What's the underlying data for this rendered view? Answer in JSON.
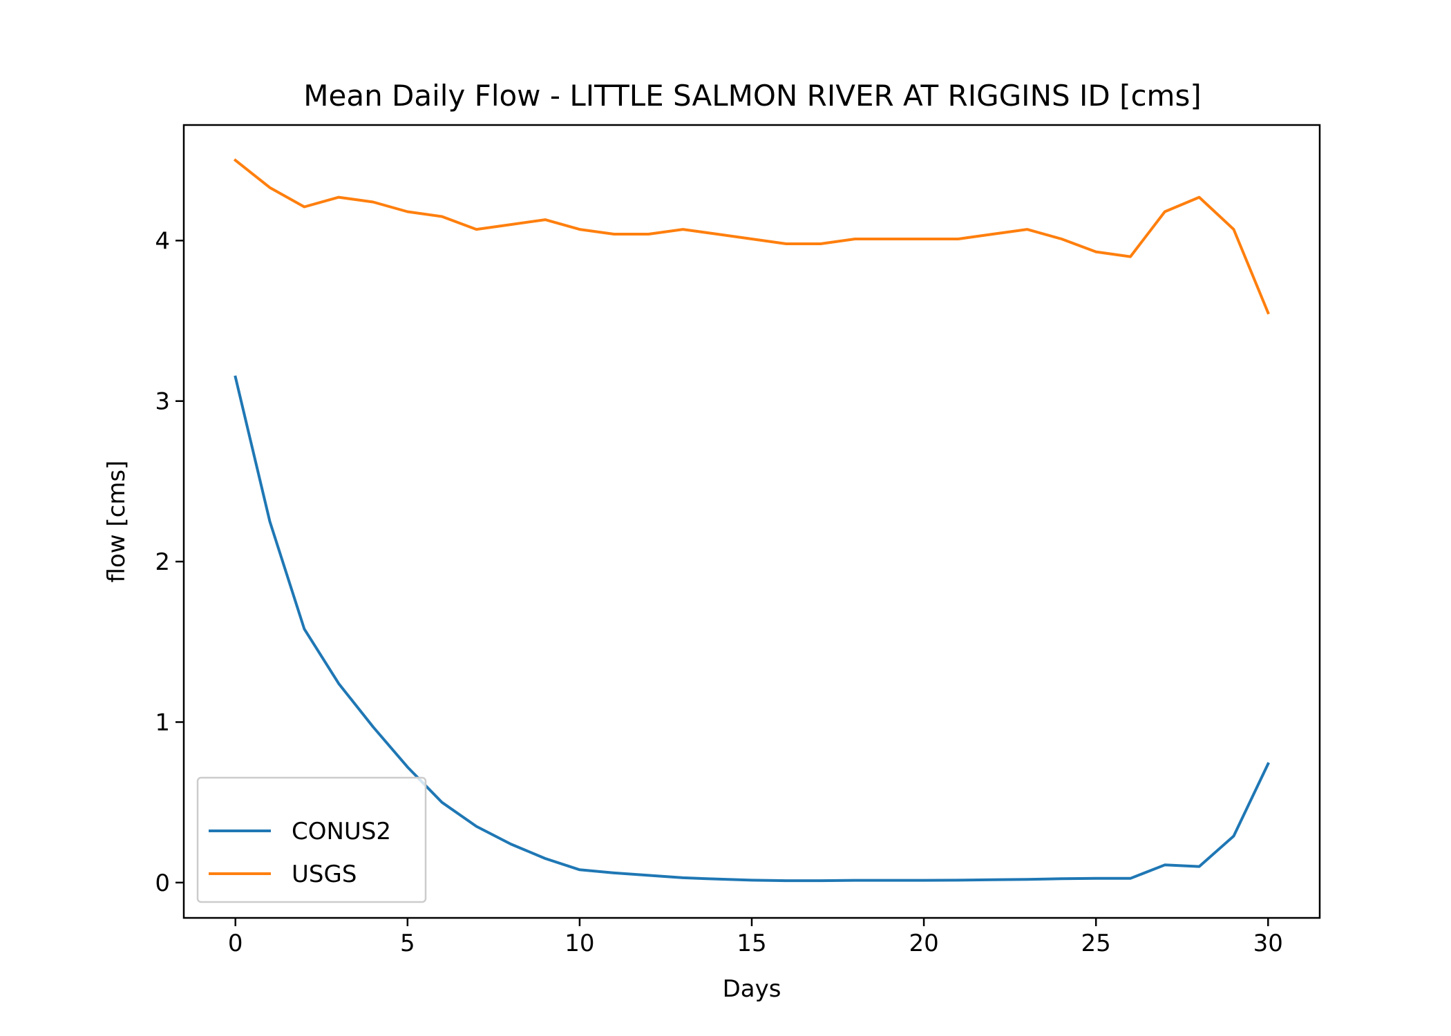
{
  "chart_data": {
    "type": "line",
    "title": "Mean Daily Flow - LITTLE SALMON RIVER AT RIGGINS ID [cms]",
    "xlabel": "Days",
    "ylabel": "flow [cms]",
    "xlim": [
      -1.5,
      31.5
    ],
    "ylim": [
      -0.22,
      4.72
    ],
    "xticks": [
      0,
      5,
      10,
      15,
      20,
      25,
      30
    ],
    "yticks": [
      0,
      1,
      2,
      3,
      4
    ],
    "grid": false,
    "legend_position": "lower-left",
    "x": [
      0,
      1,
      2,
      3,
      4,
      5,
      6,
      7,
      8,
      9,
      10,
      11,
      12,
      13,
      14,
      15,
      16,
      17,
      18,
      19,
      20,
      21,
      22,
      23,
      24,
      25,
      26,
      27,
      28,
      29,
      30
    ],
    "series": [
      {
        "name": "CONUS2",
        "color": "#1f77b4",
        "values": [
          3.15,
          2.25,
          1.58,
          1.24,
          0.97,
          0.72,
          0.5,
          0.35,
          0.24,
          0.15,
          0.08,
          0.06,
          0.045,
          0.03,
          0.022,
          0.015,
          0.012,
          0.012,
          0.014,
          0.014,
          0.014,
          0.015,
          0.018,
          0.02,
          0.024,
          0.026,
          0.026,
          0.11,
          0.1,
          0.29,
          0.74
        ]
      },
      {
        "name": "USGS",
        "color": "#ff7f0e",
        "values": [
          4.5,
          4.33,
          4.21,
          4.27,
          4.24,
          4.18,
          4.15,
          4.07,
          4.1,
          4.13,
          4.07,
          4.04,
          4.04,
          4.07,
          4.04,
          4.01,
          3.98,
          3.98,
          4.01,
          4.01,
          4.01,
          4.01,
          4.04,
          4.07,
          4.01,
          3.93,
          3.9,
          4.18,
          4.27,
          4.07,
          3.55
        ]
      }
    ]
  }
}
